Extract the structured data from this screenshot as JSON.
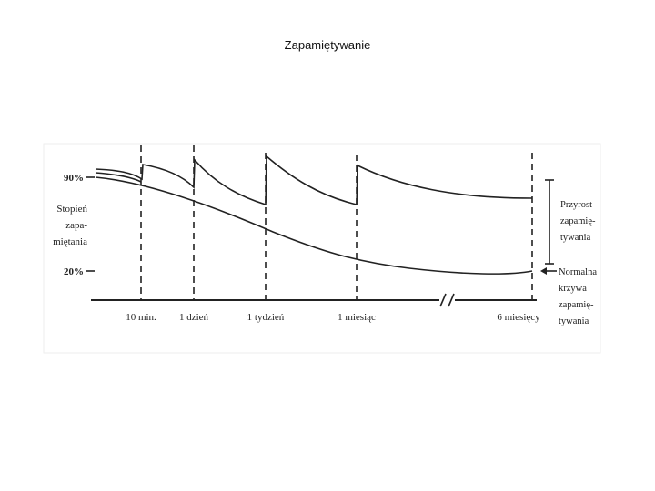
{
  "header": {
    "title": "Zapamiętywanie"
  },
  "diagram": {
    "y_labels": [
      "90%",
      "20%"
    ],
    "y_axis_title": [
      "Stopień",
      "zapa-",
      "miętania"
    ],
    "x_labels": [
      "10 min.",
      "1 dzień",
      "1 tydzień",
      "1 miesiąc",
      "6 miesięcy"
    ],
    "increase_label": [
      "Przyrost",
      "zapamię-",
      "tywania"
    ],
    "normal_curve_label": [
      "Normalna",
      "krzywa",
      "zapamię-",
      "tywania"
    ]
  }
}
